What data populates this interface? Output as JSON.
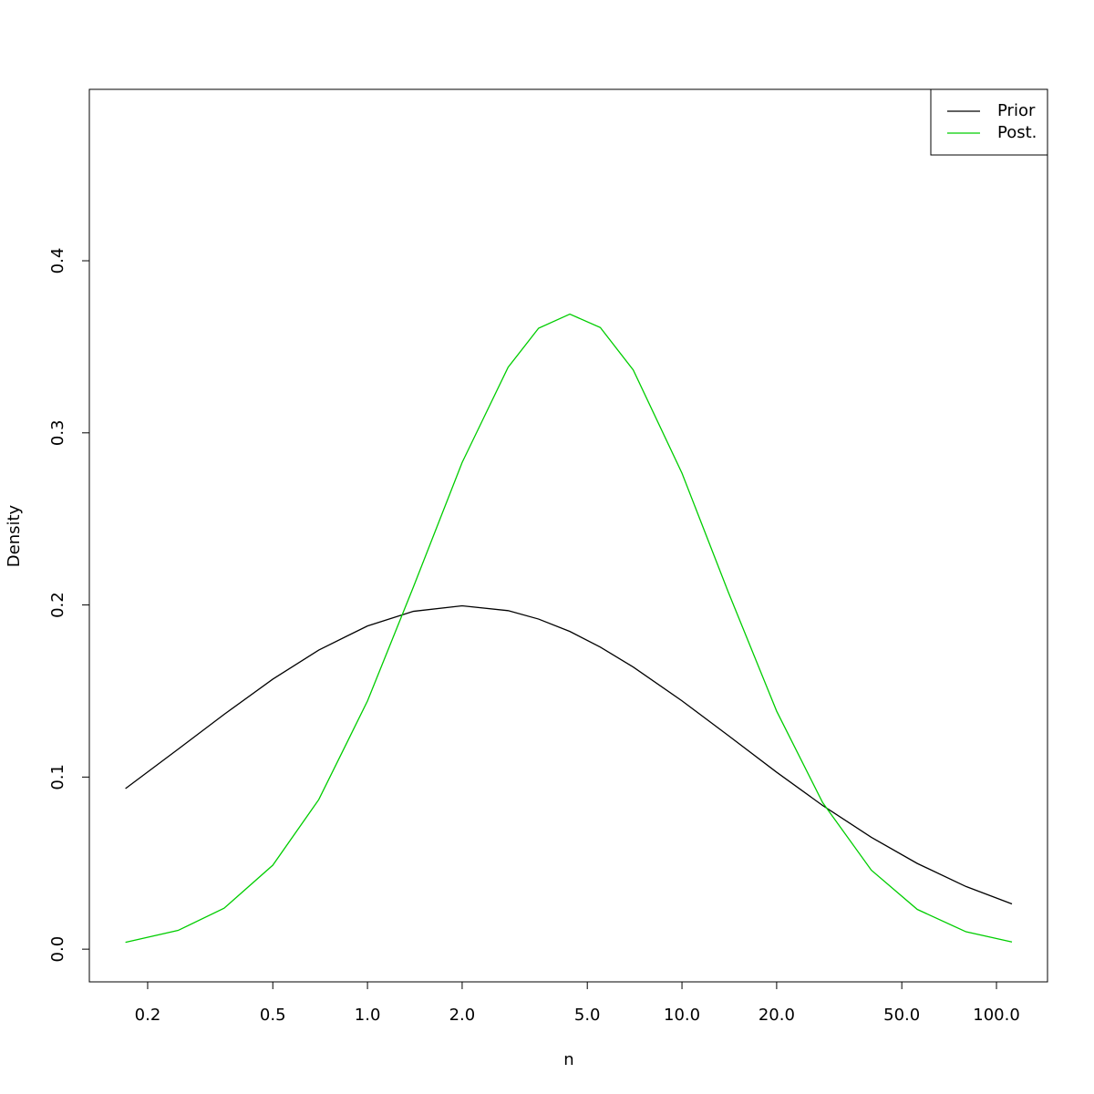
{
  "chart_data": {
    "type": "line",
    "x_label": "n",
    "y_label": "Density",
    "x": [
      0.17,
      0.25,
      0.35,
      0.5,
      0.7,
      1,
      1.4,
      2,
      2.8,
      3.5,
      4.4,
      5.5,
      7,
      10,
      14,
      20,
      28,
      40,
      56,
      80,
      112
    ],
    "series": [
      {
        "name": "Prior",
        "color": "#000000",
        "values": [
          0.0933,
          0.1162,
          0.1364,
          0.1569,
          0.1738,
          0.1878,
          0.1963,
          0.1995,
          0.1967,
          0.1918,
          0.1846,
          0.1755,
          0.1639,
          0.1443,
          0.1243,
          0.1028,
          0.0835,
          0.065,
          0.0498,
          0.0364,
          0.0263
        ]
      },
      {
        "name": "Post.",
        "color": "#00cd00",
        "values": [
          0.004,
          0.0109,
          0.0238,
          0.0488,
          0.0869,
          0.1442,
          0.2105,
          0.2828,
          0.3381,
          0.3608,
          0.369,
          0.3612,
          0.3365,
          0.2766,
          0.208,
          0.1383,
          0.0852,
          0.0459,
          0.0231,
          0.0101,
          0.0042
        ]
      }
    ],
    "log_x": true,
    "xlim": [
      0.1305,
      145.3
    ],
    "xticks": [
      0.2,
      0.5,
      {
        "value": 1,
        "label": "1.0"
      },
      {
        "value": 2,
        "label": "2.0"
      },
      {
        "value": 5,
        "label": "5.0"
      },
      {
        "value": 10,
        "label": "10.0"
      },
      {
        "value": 20,
        "label": "20.0"
      },
      {
        "value": 50,
        "label": "50.0"
      },
      {
        "value": 100,
        "label": "100.0"
      }
    ],
    "ylim": [
      -0.019,
      0.4996
    ],
    "yticks": [
      {
        "value": 0,
        "label": "0.0"
      },
      0.1,
      0.2,
      0.3,
      0.4
    ],
    "legend": "topright"
  }
}
